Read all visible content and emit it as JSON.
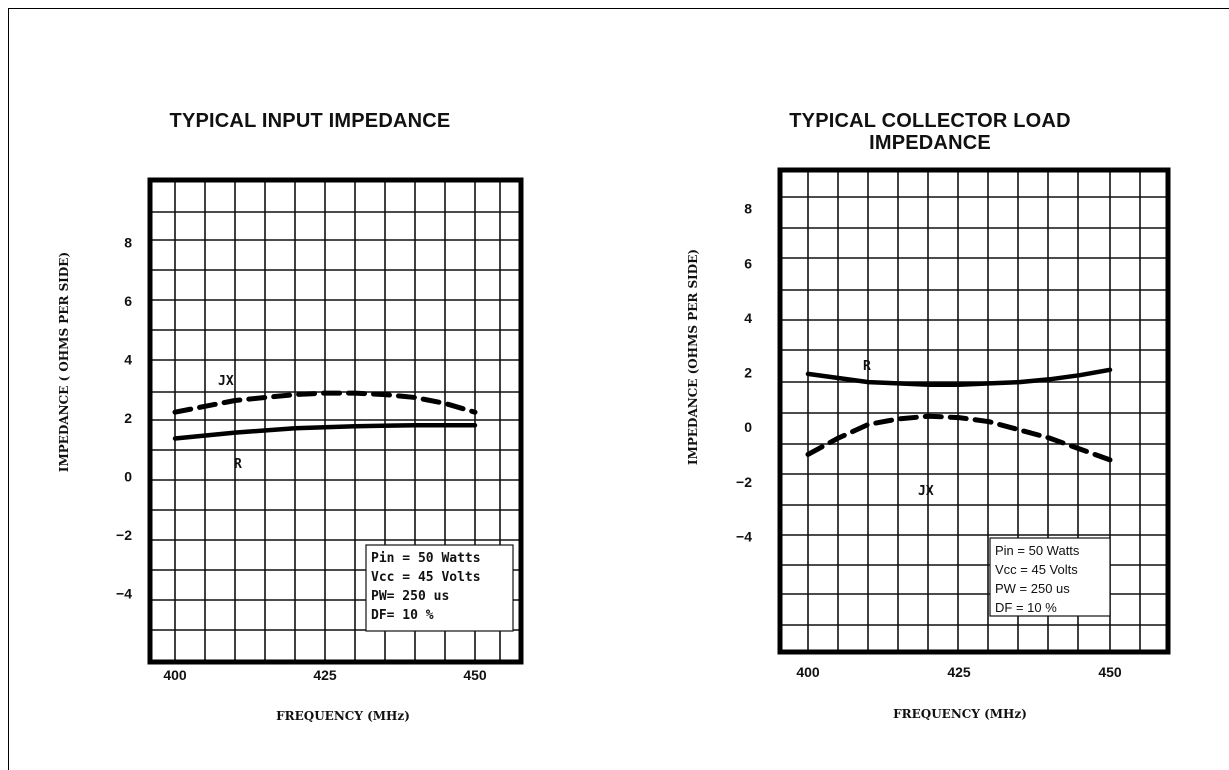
{
  "chart_data": [
    {
      "type": "line",
      "title": "TYPICAL INPUT IMPEDANCE",
      "xlabel": "FREQUENCY (MHz)",
      "ylabel": "IMPEDANCE  ( OHMS PER SIDE)",
      "xlim": [
        400,
        450
      ],
      "ylim": [
        -6,
        10
      ],
      "xticks": [
        "400",
        "425",
        "450"
      ],
      "yticks": [
        "8",
        "6",
        "4",
        "2",
        "0",
        "-2",
        "-4"
      ],
      "grid": true,
      "series": [
        {
          "name": "JX",
          "style": "dashed",
          "x": [
            400,
            405,
            410,
            415,
            420,
            425,
            430,
            435,
            440,
            445,
            450
          ],
          "y": [
            2.2,
            2.4,
            2.6,
            2.7,
            2.8,
            2.85,
            2.85,
            2.8,
            2.7,
            2.5,
            2.2
          ]
        },
        {
          "name": "R",
          "style": "solid",
          "x": [
            400,
            410,
            420,
            430,
            440,
            450
          ],
          "y": [
            1.3,
            1.5,
            1.65,
            1.72,
            1.75,
            1.75
          ]
        }
      ],
      "notes": [
        "Pin = 50 Watts",
        "Vcc = 45 Volts",
        "PW= 250 us",
        "DF= 10 %"
      ]
    },
    {
      "type": "line",
      "title": "TYPICAL COLLECTOR LOAD IMPEDANCE",
      "xlabel": "FREQUENCY (MHz)",
      "ylabel": "IMPEDANCE (OHMS PER SIDE)",
      "xlim": [
        400,
        450
      ],
      "ylim": [
        -6,
        10
      ],
      "xticks": [
        "400",
        "425",
        "450"
      ],
      "yticks": [
        "8",
        "6",
        "4",
        "2",
        "0",
        "-2",
        "-4"
      ],
      "grid": true,
      "series": [
        {
          "name": "R",
          "style": "solid",
          "x": [
            400,
            405,
            410,
            415,
            420,
            425,
            430,
            435,
            440,
            445,
            450
          ],
          "y": [
            1.95,
            1.8,
            1.65,
            1.6,
            1.55,
            1.55,
            1.6,
            1.65,
            1.75,
            1.9,
            2.1
          ]
        },
        {
          "name": "JX",
          "style": "dashed",
          "x": [
            400,
            405,
            410,
            415,
            420,
            425,
            430,
            435,
            440,
            445,
            450
          ],
          "y": [
            -1.0,
            -0.4,
            0.1,
            0.3,
            0.4,
            0.35,
            0.2,
            -0.1,
            -0.4,
            -0.8,
            -1.2
          ]
        }
      ],
      "notes": [
        "Pin = 50 Watts",
        "Vcc = 45 Volts",
        "PW = 250 us",
        "DF = 10 %"
      ]
    }
  ]
}
